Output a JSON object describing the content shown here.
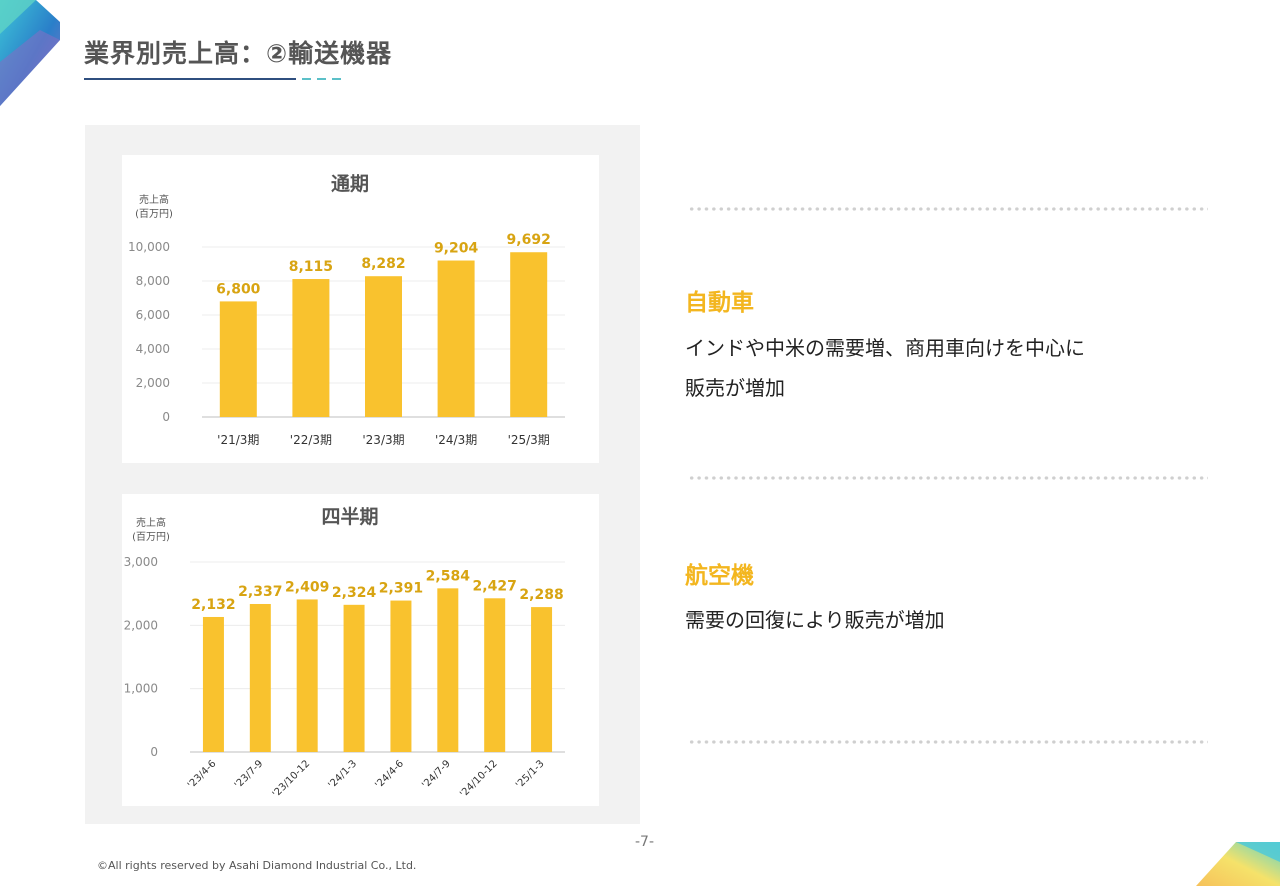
{
  "title": "業界別売上高：②輸送機器",
  "colors": {
    "bar": "#f9c22e",
    "label": "#d8a412",
    "heading": "#f3b61f",
    "axis_text": "#8a8a8a"
  },
  "chart_data": [
    {
      "type": "bar",
      "title": "通期",
      "ylabel": "売上高\n(百万円)",
      "ylabel_lines": [
        "売上高",
        "(百万円)"
      ],
      "categories": [
        "'21/3期",
        "'22/3期",
        "'23/3期",
        "'24/3期",
        "'25/3期"
      ],
      "values": [
        6800,
        8115,
        8282,
        9204,
        9692
      ],
      "value_labels": [
        "6,800",
        "8,115",
        "8,282",
        "9,204",
        "9,692"
      ],
      "ylim": [
        0,
        10000
      ],
      "yticks": [
        0,
        2000,
        4000,
        6000,
        8000,
        10000
      ],
      "ytick_labels": [
        "0",
        "2,000",
        "4,000",
        "6,000",
        "8,000",
        "10,000"
      ],
      "grid": true
    },
    {
      "type": "bar",
      "title": "四半期",
      "ylabel": "売上高\n(百万円)",
      "ylabel_lines": [
        "売上高",
        "(百万円)"
      ],
      "categories": [
        "'23/4-6",
        "'23/7-9",
        "'23/10-12",
        "'24/1-3",
        "'24/4-6",
        "'24/7-9",
        "'24/10-12",
        "'25/1-3"
      ],
      "values": [
        2132,
        2337,
        2409,
        2324,
        2391,
        2584,
        2427,
        2288
      ],
      "value_labels": [
        "2,132",
        "2,337",
        "2,409",
        "2,324",
        "2,391",
        "2,584",
        "2,427",
        "2,288"
      ],
      "ylim": [
        0,
        3000
      ],
      "yticks": [
        0,
        1000,
        2000,
        3000
      ],
      "ytick_labels": [
        "0",
        "1,000",
        "2,000",
        "3,000"
      ],
      "grid": true
    }
  ],
  "categories": [
    {
      "title": "自動車",
      "lines": [
        "インドや中米の需要増、商用車向けを中心に",
        "販売が増加"
      ]
    },
    {
      "title": "航空機",
      "lines": [
        "需要の回復により販売が増加"
      ]
    }
  ],
  "page_number": "-7-",
  "copyright": "©All rights reserved by Asahi Diamond Industrial Co., Ltd."
}
